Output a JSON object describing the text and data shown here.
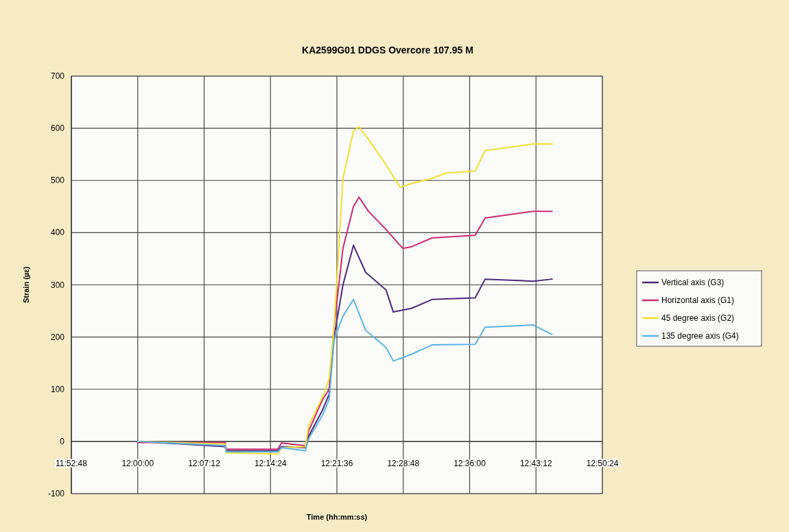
{
  "chart_data": {
    "type": "line",
    "title": "KA2599G01 DDGS Overcore 107.95 M",
    "xlabel": "Time (hh:mm:ss)",
    "ylabel": "Strain (µε)",
    "xlim": [
      11.88,
      12.84
    ],
    "xticks": [
      {
        "value": 11.88,
        "label": "11:52:48"
      },
      {
        "value": 12.0,
        "label": "12:00:00"
      },
      {
        "value": 12.12,
        "label": "12:07:12"
      },
      {
        "value": 12.24,
        "label": "12:14:24"
      },
      {
        "value": 12.36,
        "label": "12:21:36"
      },
      {
        "value": 12.48,
        "label": "12:28:48"
      },
      {
        "value": 12.6,
        "label": "12:36:00"
      },
      {
        "value": 12.72,
        "label": "12:43:12"
      },
      {
        "value": 12.84,
        "label": "12:50:24"
      }
    ],
    "ylim": [
      -100,
      700
    ],
    "yticks": [
      -100,
      0,
      100,
      200,
      300,
      400,
      500,
      600,
      700
    ],
    "grid": true,
    "legend": "right",
    "line_style": "solid",
    "marker": "none",
    "series": [
      {
        "name": "Vertical axis (G3)",
        "color": "#4b2a7a",
        "x": [
          12.0,
          12.158,
          12.16,
          12.253,
          12.26,
          12.303,
          12.309,
          12.334,
          12.346,
          12.355,
          12.371,
          12.39,
          12.412,
          12.449,
          12.462,
          12.495,
          12.532,
          12.61,
          12.628,
          12.715,
          12.749
        ],
        "values": [
          0,
          -10,
          -18,
          -18,
          -10,
          -12,
          10,
          60,
          90,
          200,
          300,
          376,
          324,
          290,
          248,
          255,
          272,
          275,
          311,
          307,
          311
        ]
      },
      {
        "name": "Horizontal axis (G1)",
        "color": "#cc2a6e",
        "x": [
          12.0,
          12.158,
          12.16,
          12.253,
          12.26,
          12.303,
          12.309,
          12.334,
          12.346,
          12.355,
          12.371,
          12.39,
          12.4,
          12.417,
          12.449,
          12.479,
          12.495,
          12.532,
          12.61,
          12.628,
          12.715,
          12.749
        ],
        "values": [
          -2,
          -2,
          -15,
          -15,
          -3,
          -8,
          20,
          80,
          100,
          220,
          370,
          450,
          468,
          441,
          406,
          370,
          373,
          390,
          395,
          428,
          441,
          441
        ]
      },
      {
        "name": "45 degree axis (G2)",
        "color": "#f2e030",
        "x": [
          12.0,
          12.158,
          12.16,
          12.253,
          12.26,
          12.303,
          12.309,
          12.334,
          12.346,
          12.355,
          12.371,
          12.39,
          12.4,
          12.417,
          12.449,
          12.474,
          12.495,
          12.532,
          12.557,
          12.61,
          12.628,
          12.715,
          12.749
        ],
        "values": [
          0,
          -5,
          -22,
          -24,
          -12,
          -10,
          30,
          85,
          120,
          220,
          504,
          595,
          603,
          579,
          530,
          487,
          494,
          504,
          514,
          518,
          557,
          570,
          570
        ]
      },
      {
        "name": "135 degree axis (G4)",
        "color": "#5ab4e6",
        "x": [
          12.0,
          12.158,
          12.16,
          12.253,
          12.26,
          12.303,
          12.309,
          12.334,
          12.346,
          12.355,
          12.371,
          12.39,
          12.412,
          12.449,
          12.462,
          12.495,
          12.532,
          12.61,
          12.628,
          12.715,
          12.749
        ],
        "values": [
          0,
          -8,
          -20,
          -20,
          -12,
          -18,
          5,
          50,
          80,
          195,
          240,
          272,
          213,
          180,
          154,
          167,
          185,
          186,
          219,
          223,
          205
        ]
      }
    ]
  }
}
